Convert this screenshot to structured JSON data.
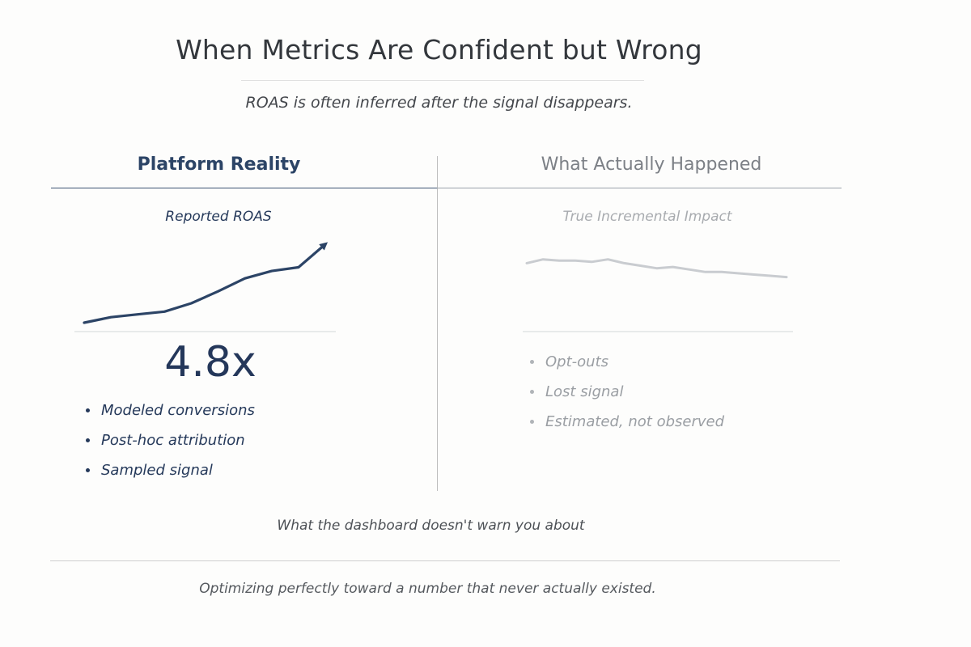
{
  "title": "When Metrics Are Confident but Wrong",
  "subtitle": "ROAS is often inferred after the signal disappears.",
  "left": {
    "heading": "Platform Reality",
    "chart_label": "Reported ROAS",
    "value": "4.8x",
    "bullets": [
      "Modeled conversions",
      "Post-hoc attribution",
      "Sampled signal"
    ]
  },
  "right": {
    "heading": "What Actually Happened",
    "chart_label": "True Incremental Impact",
    "bullets": [
      "Opt-outs",
      "Lost signal",
      "Estimated, not observed"
    ]
  },
  "footer_note": "What the dashboard doesn't warn you about",
  "closing": "Optimizing perfectly toward a number that never actually existed.",
  "colors": {
    "navy": "#2c4466",
    "gray_line": "#c9ccd0"
  },
  "chart_data": [
    {
      "type": "line",
      "title": "Reported ROAS",
      "trend": "rising",
      "series": [
        {
          "values": [
            1.0,
            1.6,
            1.9,
            2.2,
            3.1,
            4.4,
            5.8,
            6.6,
            7.0,
            9.5
          ]
        }
      ]
    },
    {
      "type": "line",
      "title": "True Incremental Impact",
      "trend": "flat-declining",
      "series": [
        {
          "values": [
            6.2,
            6.5,
            6.4,
            6.4,
            6.3,
            6.5,
            6.2,
            6.0,
            5.8,
            5.9,
            5.7,
            5.5,
            5.5,
            5.4,
            5.3,
            5.2,
            5.1
          ]
        }
      ]
    }
  ]
}
